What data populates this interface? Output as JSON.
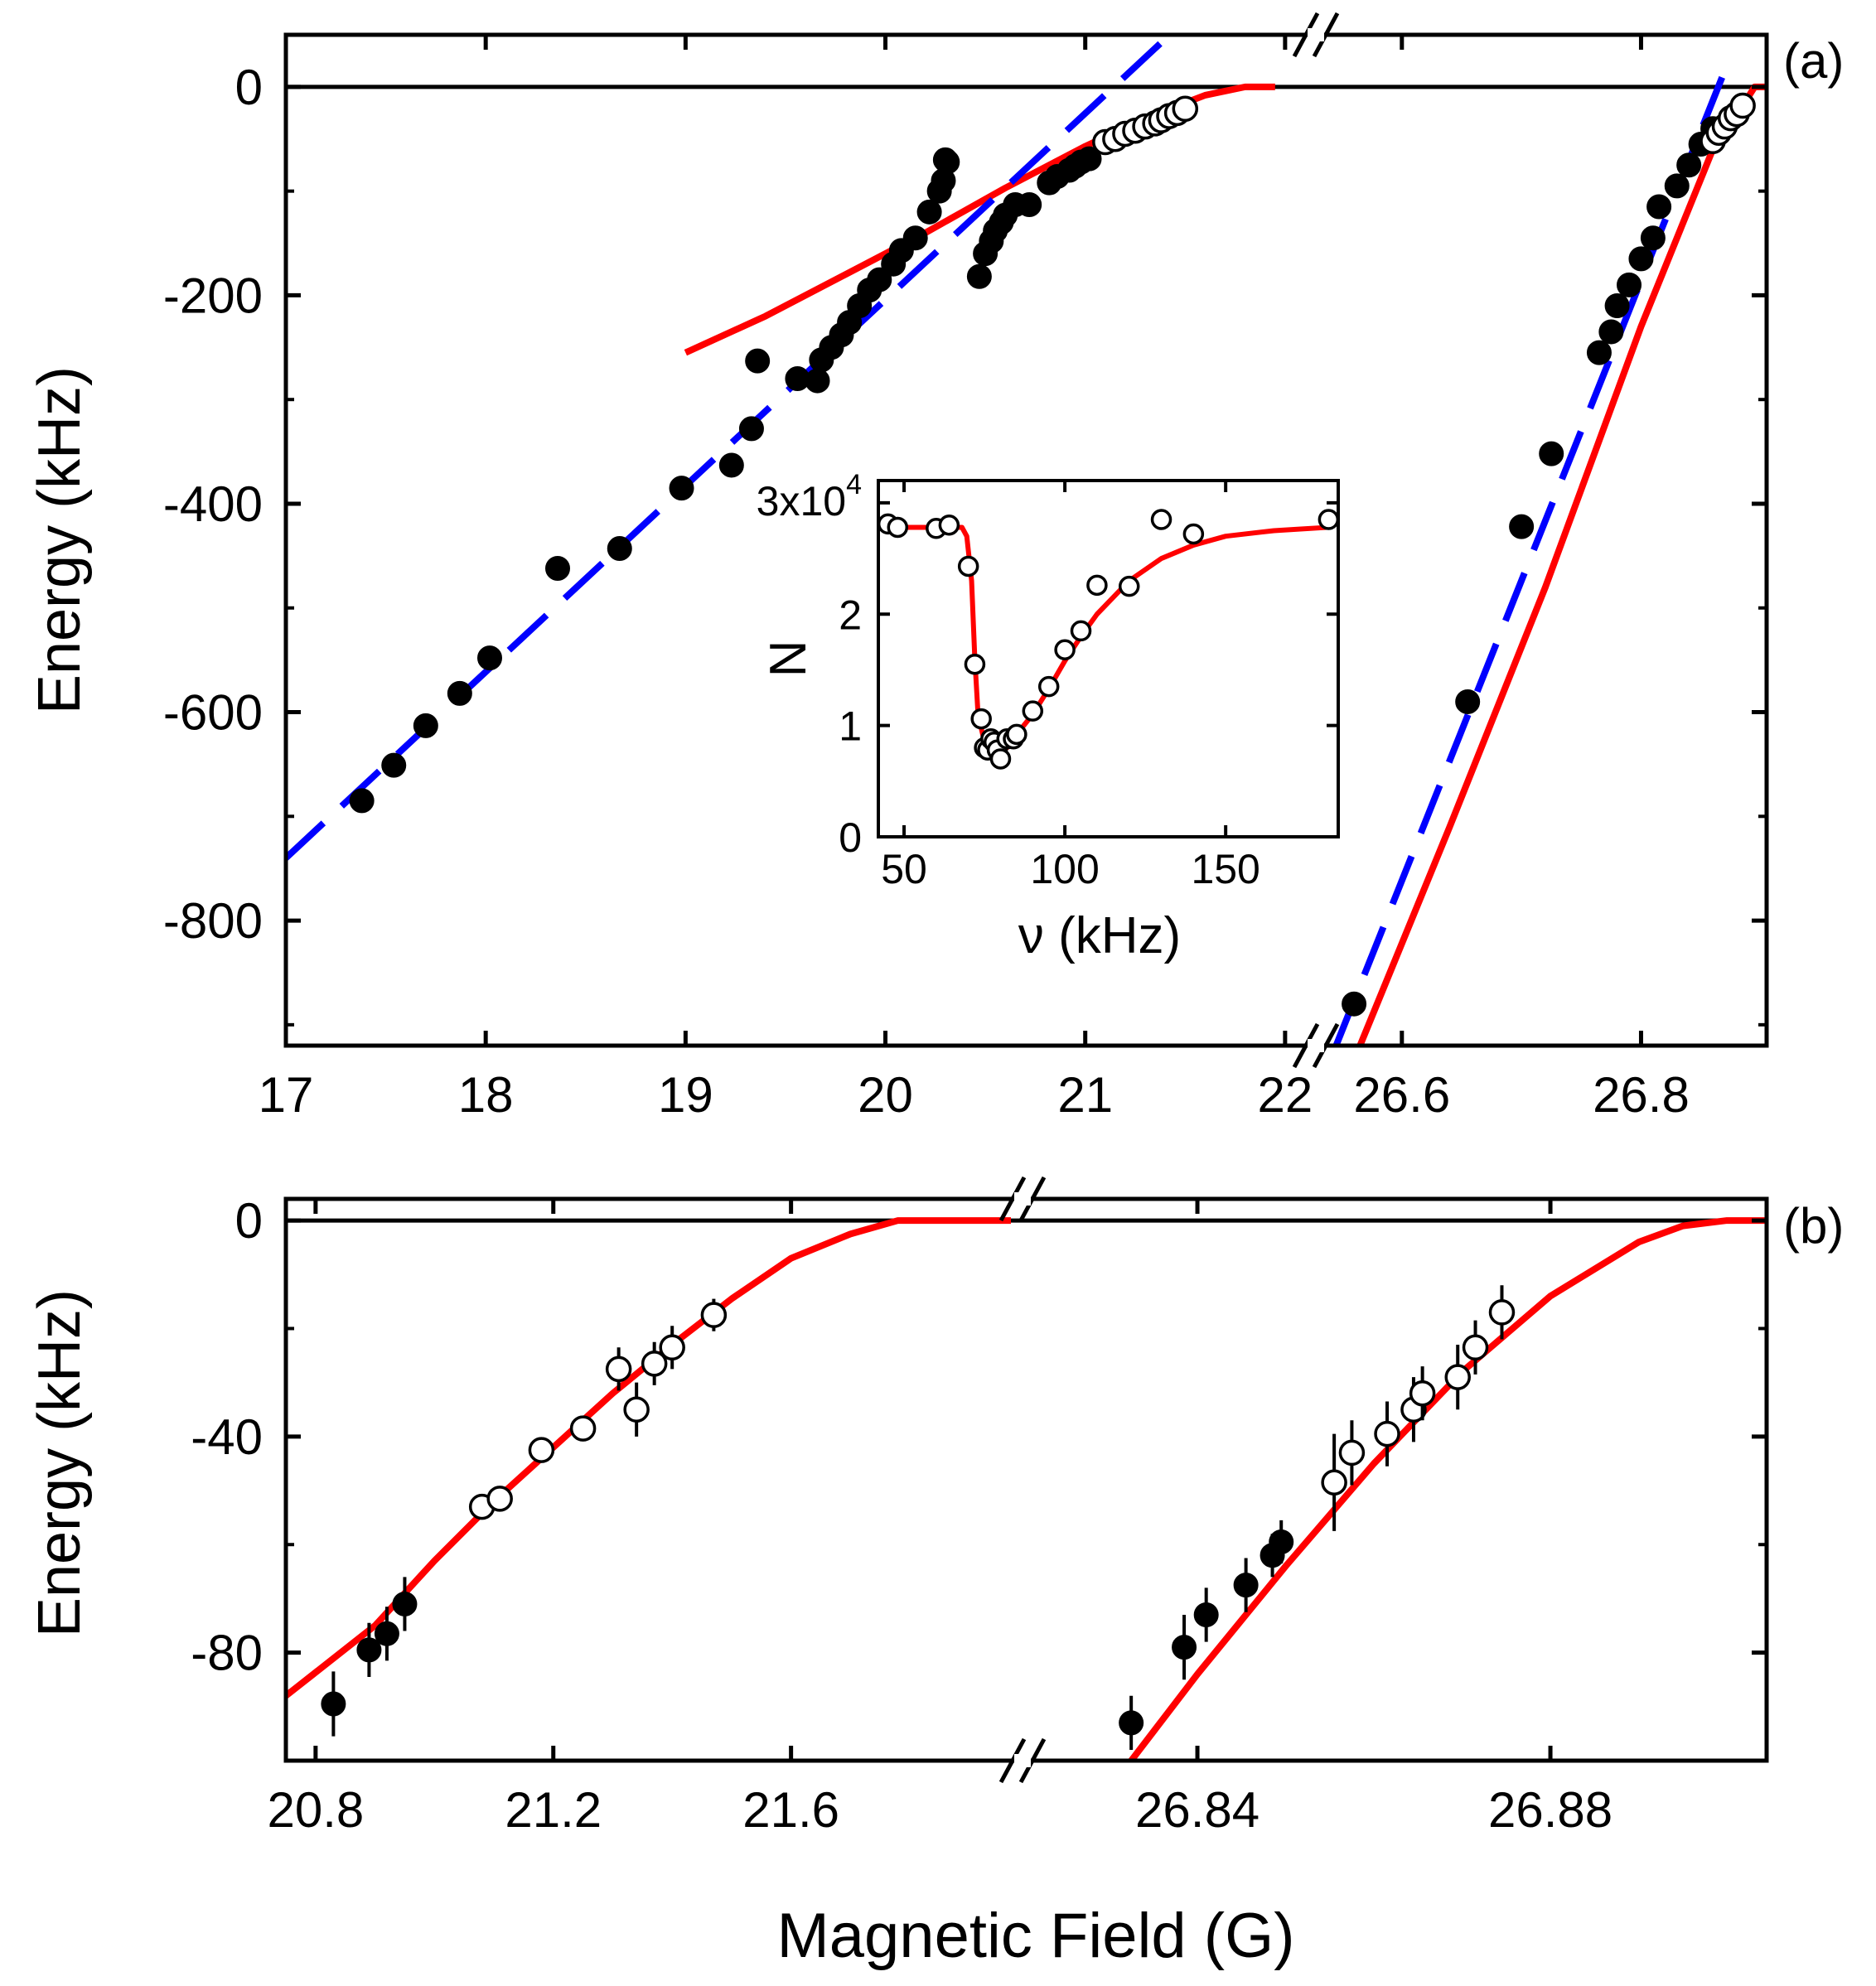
{
  "figure": {
    "xlabel": "Magnetic Field (G)"
  },
  "chart_data": [
    {
      "panel": "(a)",
      "type": "scatter",
      "ylabel": "Energy (kHz)",
      "ylim": [
        -920,
        50
      ],
      "yticks": [
        "0",
        "-200",
        "-400",
        "-600",
        "-800"
      ],
      "yticks_values": [
        0,
        -200,
        -400,
        -600,
        -800
      ],
      "segments": [
        {
          "name": "low-field",
          "xlim": [
            17,
            22.1
          ],
          "xticks_values": [
            17,
            18,
            19,
            20,
            21,
            22
          ],
          "xticks": [
            "17",
            "18",
            "19",
            "20",
            "21",
            "22"
          ],
          "series": [
            {
              "name": "filled data",
              "marker": "filled-circle",
              "x": [
                17.38,
                17.54,
                17.7,
                17.87,
                18.02,
                18.36,
                18.67,
                18.98,
                19.23,
                19.33,
                19.36,
                19.56,
                19.66,
                19.68,
                19.73,
                19.78,
                19.82,
                19.87,
                19.92,
                19.97,
                20.04,
                20.08,
                20.15,
                20.22,
                20.27,
                20.29,
                20.3,
                20.31,
                20.47,
                20.5,
                20.53,
                20.55,
                20.58,
                20.6,
                20.65,
                20.72,
                20.82,
                20.86,
                20.92,
                20.95,
                20.98,
                21.02
              ],
              "y": [
                -685,
                -651,
                -613,
                -582,
                -548,
                -462,
                -443,
                -385,
                -363,
                -328,
                -263,
                -280,
                -282,
                -262,
                -250,
                -238,
                -226,
                -210,
                -195,
                -185,
                -170,
                -157,
                -145,
                -120,
                -100,
                -90,
                -70,
                -72,
                -182,
                -160,
                -148,
                -138,
                -130,
                -123,
                -113,
                -113,
                -92,
                -86,
                -80,
                -76,
                -72,
                -69
              ]
            },
            {
              "name": "open data",
              "marker": "open-circle",
              "x": [
                21.1,
                21.15,
                21.2,
                21.25,
                21.3,
                21.35,
                21.38,
                21.42,
                21.46,
                21.5
              ],
              "y": [
                -53,
                -50,
                -45,
                -42,
                -38,
                -35,
                -32,
                -28,
                -25,
                -21
              ]
            },
            {
              "name": "fit",
              "style": "red-solid",
              "x": [
                19.0,
                19.4,
                19.8,
                20.2,
                20.6,
                21.0,
                21.3,
                21.6,
                21.8,
                21.95
              ],
              "y": [
                -255,
                -220,
                -180,
                -140,
                -97,
                -57,
                -30,
                -8,
                0,
                0
              ]
            },
            {
              "name": "linear",
              "style": "blue-dashed",
              "x": [
                17.0,
                21.45
              ],
              "y": [
                -740,
                55
              ]
            }
          ]
        },
        {
          "name": "high-field",
          "xlim": [
            26.535,
            26.905
          ],
          "xticks_values": [
            26.6,
            26.8
          ],
          "xticks": [
            "26.6",
            "26.8"
          ],
          "series": [
            {
              "name": "filled data",
              "marker": "filled-circle",
              "x": [
                26.56,
                26.655,
                26.7,
                26.725,
                26.765,
                26.775,
                26.78,
                26.79,
                26.8,
                26.81,
                26.815,
                26.83,
                26.84,
                26.85,
                26.86
              ],
              "y": [
                -880,
                -590,
                -422,
                -352,
                -255,
                -235,
                -210,
                -190,
                -165,
                -145,
                -115,
                -95,
                -75,
                -55,
                -40
              ]
            },
            {
              "name": "open data",
              "marker": "open-circle",
              "x": [
                26.86,
                26.865,
                26.87,
                26.875,
                26.88,
                26.885
              ],
              "y": [
                -52,
                -44,
                -38,
                -30,
                -26,
                -18
              ]
            },
            {
              "name": "fit",
              "style": "red-solid",
              "x": [
                26.565,
                26.64,
                26.72,
                26.8,
                26.86,
                26.885,
                26.895,
                26.905
              ],
              "y": [
                -920,
                -710,
                -480,
                -230,
                -60,
                -18,
                0,
                0
              ]
            },
            {
              "name": "linear",
              "style": "blue-dashed",
              "x": [
                26.545,
                26.875
              ],
              "y": [
                -920,
                30
              ]
            }
          ]
        }
      ]
    },
    {
      "panel": "(b)",
      "type": "scatter",
      "ylabel": "Energy (kHz)",
      "ylim": [
        -100,
        4
      ],
      "yticks": [
        "0",
        "-40",
        "-80"
      ],
      "yticks_values": [
        0,
        -40,
        -80
      ],
      "segments": [
        {
          "name": "low-field",
          "xlim": [
            20.75,
            21.97
          ],
          "xticks_values": [
            20.8,
            21.2,
            21.6
          ],
          "xticks": [
            "20.8",
            "21.2",
            "21.6"
          ],
          "series": [
            {
              "name": "filled data",
              "marker": "filled-circle",
              "x": [
                20.83,
                20.89,
                20.92,
                20.95
              ],
              "y": [
                -89.5,
                -79.5,
                -76.5,
                -71
              ],
              "yerr": [
                6,
                5,
                5,
                5
              ]
            },
            {
              "name": "open data",
              "marker": "open-circle",
              "x": [
                21.08,
                21.11,
                21.18,
                21.25,
                21.31,
                21.34,
                21.37,
                21.4,
                21.47
              ],
              "y": [
                -53,
                -51.5,
                -42.5,
                -38.5,
                -27.5,
                -35,
                -26.5,
                -23.5,
                -17.5
              ],
              "yerr": [
                2,
                2,
                2,
                2,
                4,
                5,
                4,
                4,
                3
              ]
            },
            {
              "name": "fit",
              "style": "red-solid",
              "x": [
                20.75,
                20.9,
                21.0,
                21.1,
                21.2,
                21.3,
                21.4,
                21.5,
                21.6,
                21.7,
                21.78,
                21.85,
                21.97
              ],
              "y": [
                -88,
                -75,
                -63,
                -52,
                -42,
                -32,
                -23,
                -14.5,
                -7,
                -2.5,
                0,
                0,
                0
              ]
            }
          ]
        },
        {
          "name": "high-field",
          "xlim": [
            26.8215,
            26.9045
          ],
          "xticks_values": [
            26.84,
            26.88
          ],
          "xticks": [
            "26.84",
            "26.88"
          ],
          "series": [
            {
              "name": "filled data",
              "marker": "filled-circle",
              "x": [
                26.8325,
                26.8385,
                26.841,
                26.8455,
                26.8485,
                26.8495
              ],
              "y": [
                -93,
                -79,
                -73,
                -67.5,
                -62,
                -59.5
              ],
              "yerr": [
                5,
                6,
                5,
                5,
                4,
                4
              ]
            },
            {
              "name": "open data",
              "marker": "open-circle",
              "x": [
                26.8555,
                26.8575,
                26.8615,
                26.8645,
                26.8655,
                26.8695,
                26.8715,
                26.8745
              ],
              "y": [
                -48.5,
                -43,
                -39.5,
                -35,
                -32,
                -29,
                -23.5,
                -17
              ],
              "yerr": [
                9,
                6,
                6,
                6,
                5,
                6,
                5,
                5
              ]
            },
            {
              "name": "fit",
              "style": "red-solid",
              "x": [
                26.8325,
                26.84,
                26.85,
                26.86,
                26.87,
                26.88,
                26.89,
                26.895,
                26.9,
                26.905
              ],
              "y": [
                -100,
                -84,
                -64,
                -45,
                -28,
                -14,
                -4,
                -1,
                0,
                0
              ]
            }
          ]
        }
      ]
    },
    {
      "panel": "inset",
      "type": "scatter",
      "xlabel": "ν (kHz)",
      "ylabel": "N",
      "ylim_display": [
        0,
        3.2
      ],
      "y_multiplier_label": "3x10",
      "y_multiplier_exponent": "4",
      "yticks": [
        "0",
        "1",
        "2"
      ],
      "yticks_values": [
        0,
        1,
        2
      ],
      "ytick_top_value": 3,
      "xlim": [
        42,
        185
      ],
      "xticks": [
        "50",
        "100",
        "150"
      ],
      "xticks_values": [
        50,
        100,
        150
      ],
      "series": [
        {
          "name": "open data",
          "marker": "open-circle",
          "x": [
            45,
            48,
            60,
            64,
            70,
            72,
            74,
            75,
            76,
            77,
            78,
            79,
            80,
            82,
            84,
            85,
            90,
            95,
            100,
            105,
            110,
            120,
            130,
            140,
            182
          ],
          "y": [
            2.81,
            2.78,
            2.77,
            2.8,
            2.43,
            1.55,
            1.06,
            0.8,
            0.78,
            0.88,
            0.85,
            0.78,
            0.7,
            0.88,
            0.88,
            0.92,
            1.13,
            1.35,
            1.68,
            1.85,
            2.26,
            2.25,
            2.85,
            2.72,
            2.85
          ]
        },
        {
          "name": "fit",
          "style": "red-solid",
          "x": [
            42,
            60,
            68,
            69.5,
            71,
            72,
            73,
            75,
            78,
            80,
            82,
            85,
            90,
            95,
            100,
            105,
            110,
            120,
            130,
            140,
            150,
            165,
            182
          ],
          "y": [
            2.78,
            2.78,
            2.78,
            2.7,
            2.3,
            1.6,
            1.1,
            0.85,
            0.78,
            0.78,
            0.8,
            0.92,
            1.1,
            1.33,
            1.58,
            1.8,
            2.0,
            2.3,
            2.5,
            2.62,
            2.7,
            2.75,
            2.78
          ]
        }
      ]
    }
  ]
}
